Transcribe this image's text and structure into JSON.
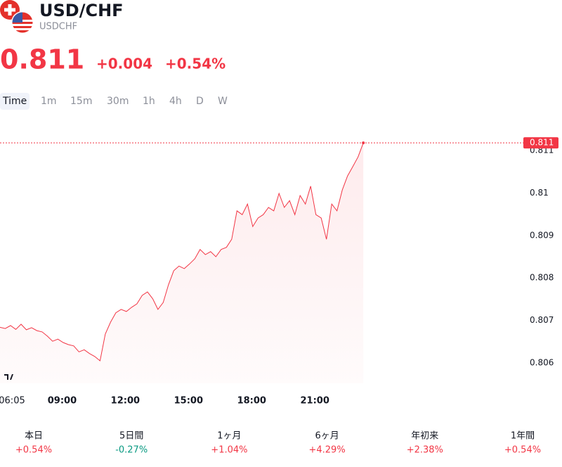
{
  "header": {
    "title": "USD/CHF",
    "symbol": "USDCHF",
    "price": "0.811",
    "change": "+0.004",
    "change_percent": "+0.54%"
  },
  "tabs": [
    "Time",
    "1m",
    "15m",
    "30m",
    "1h",
    "4h",
    "D",
    "W"
  ],
  "chart_data": {
    "type": "line",
    "color": "#f23645",
    "x": [
      6.05,
      6.3,
      6.55,
      6.8,
      7.05,
      7.3,
      7.55,
      7.8,
      8.05,
      8.3,
      8.55,
      8.8,
      9.05,
      9.3,
      9.55,
      9.8,
      10.05,
      10.3,
      10.55,
      10.8,
      11.05,
      11.3,
      11.55,
      11.8,
      12.05,
      12.3,
      12.55,
      12.8,
      13.05,
      13.3,
      13.55,
      13.8,
      14.05,
      14.3,
      14.55,
      14.8,
      15.05,
      15.3,
      15.55,
      15.8,
      16.05,
      16.3,
      16.55,
      16.8,
      17.05,
      17.3,
      17.55,
      17.8,
      18.05,
      18.3,
      18.55,
      18.8,
      19.05,
      19.3,
      19.55,
      19.8,
      20.05,
      20.3,
      20.55,
      20.8,
      21.05,
      21.3,
      21.55,
      21.8,
      22.05,
      22.3,
      22.55,
      22.8,
      23.05,
      23.3
    ],
    "values": [
      0.80684,
      0.80681,
      0.80688,
      0.80679,
      0.80691,
      0.80678,
      0.80683,
      0.80676,
      0.80673,
      0.80663,
      0.80651,
      0.80656,
      0.80648,
      0.80643,
      0.8064,
      0.80626,
      0.80631,
      0.80622,
      0.80615,
      0.80605,
      0.80668,
      0.80696,
      0.80718,
      0.80726,
      0.80721,
      0.80731,
      0.80739,
      0.80759,
      0.80767,
      0.80751,
      0.80726,
      0.80742,
      0.80784,
      0.80817,
      0.80828,
      0.80822,
      0.80833,
      0.80845,
      0.80867,
      0.80855,
      0.80862,
      0.8085,
      0.80867,
      0.80872,
      0.80891,
      0.80958,
      0.80949,
      0.80974,
      0.80921,
      0.80941,
      0.80949,
      0.80966,
      0.80958,
      0.80999,
      0.80966,
      0.80982,
      0.80949,
      0.80994,
      0.80974,
      0.81016,
      0.80949,
      0.80941,
      0.80891,
      0.80974,
      0.80958,
      0.81007,
      0.8104,
      0.81062,
      0.81085,
      0.81118
    ],
    "xlim": [
      6.05,
      30.9
    ],
    "xticks": [
      {
        "value": 6.083,
        "label": "06:05"
      },
      {
        "value": 9,
        "label": "09:00"
      },
      {
        "value": 12,
        "label": "12:00"
      },
      {
        "value": 15,
        "label": "15:00"
      },
      {
        "value": 18,
        "label": "18:00"
      },
      {
        "value": 21,
        "label": "21:00"
      }
    ],
    "ylim": [
      0.80552,
      0.81148
    ],
    "yticks": [
      0.806,
      0.807,
      0.808,
      0.809,
      0.81,
      0.811
    ],
    "price_line": {
      "value": 0.81118,
      "label": "0.811"
    }
  },
  "periods": [
    {
      "label": "本日",
      "change": "+0.54%"
    },
    {
      "label": "5日間",
      "change": "-0.27%"
    },
    {
      "label": "1ヶ月",
      "change": "+1.04%"
    },
    {
      "label": "6ヶ月",
      "change": "+4.29%"
    },
    {
      "label": "年初来",
      "change": "+2.38%"
    },
    {
      "label": "1年間",
      "change": "+0.54%"
    }
  ]
}
